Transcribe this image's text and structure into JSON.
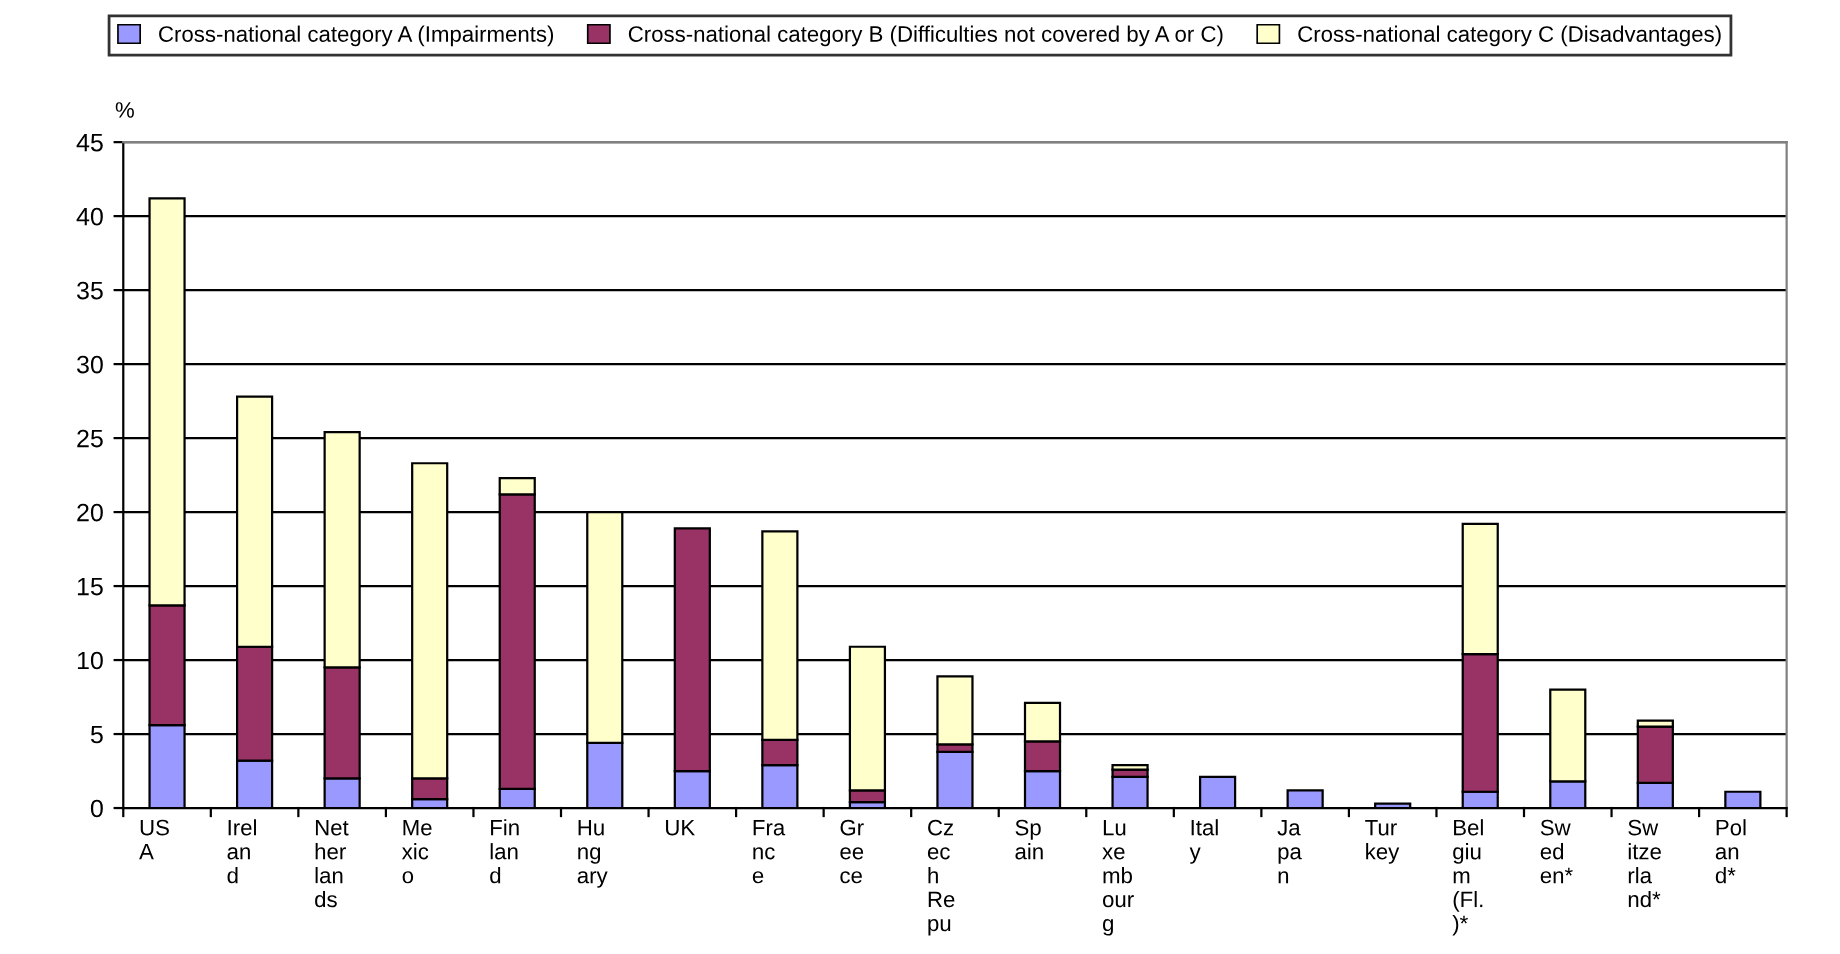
{
  "chart_data": {
    "type": "bar",
    "stacked": true,
    "ylabel": "%",
    "categories": [
      "US\nA",
      "Irel\nan\nd",
      "Net\nher\nlan\nds",
      "Me\nxic\no",
      "Fin\nlan\nd",
      "Hu\nng\nary",
      "UK",
      "Fra\nnc\ne",
      "Gr\nee\nce",
      "Cz\nec\nh\nRe\npu",
      "Sp\nain",
      "Lu\nxe\nmb\nour\ng",
      "Ital\ny",
      "Ja\npa\nn",
      "Tur\nkey",
      "Bel\ngiu\nm\n(Fl.\n)*",
      "Sw\ned\nen*",
      "Sw\nitze\nrla\nnd*",
      "Pol\nan\nd*"
    ],
    "series": [
      {
        "name": "Cross-national category A (Impairments)",
        "color": "#9999ff",
        "values": [
          5.6,
          3.2,
          2.0,
          0.6,
          1.3,
          4.4,
          2.5,
          2.9,
          0.4,
          3.8,
          2.5,
          2.1,
          2.1,
          1.2,
          0.3,
          1.1,
          1.8,
          1.7,
          1.1
        ]
      },
      {
        "name": "Cross-national category B (Difficulties not covered by A or C)",
        "color": "#993366",
        "values": [
          8.1,
          7.7,
          7.5,
          1.4,
          19.9,
          null,
          16.4,
          1.7,
          0.8,
          0.5,
          2.0,
          0.5,
          null,
          null,
          null,
          9.3,
          null,
          3.8,
          null
        ]
      },
      {
        "name": "Cross-national category C (Disadvantages)",
        "color": "#ffffcc",
        "values": [
          27.5,
          16.9,
          15.9,
          21.3,
          1.1,
          15.6,
          null,
          14.1,
          9.7,
          4.6,
          2.6,
          0.3,
          null,
          null,
          null,
          8.8,
          6.2,
          0.4,
          null
        ]
      }
    ],
    "ylim": [
      0,
      45
    ],
    "yticks": [
      0,
      5,
      10,
      15,
      20,
      25,
      30,
      35,
      40,
      45
    ],
    "grid": "y",
    "legend": "top"
  }
}
